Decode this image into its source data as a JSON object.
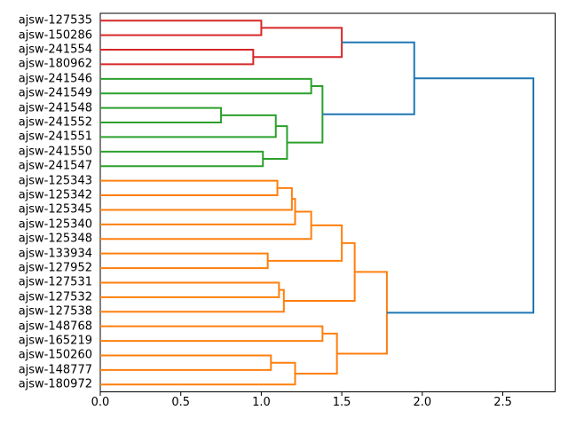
{
  "chart_data": {
    "type": "dendrogram",
    "title": "",
    "xlabel": "",
    "ylabel": "",
    "orientation": "labels-left-root-right",
    "xlim": [
      0,
      2.825
    ],
    "grid": false,
    "x_ticks": [
      {
        "value": 0.0,
        "label": "0.0"
      },
      {
        "value": 0.5,
        "label": "0.5"
      },
      {
        "value": 1.0,
        "label": "1.0"
      },
      {
        "value": 1.5,
        "label": "1.5"
      },
      {
        "value": 2.0,
        "label": "2.0"
      },
      {
        "value": 2.5,
        "label": "2.5"
      }
    ],
    "colors": {
      "blue": "#1f77b4",
      "orange": "#ff7f0e",
      "green": "#2ca02c",
      "red": "#d62728",
      "spine": "#000000",
      "text": "#000000",
      "background": "#ffffff"
    },
    "leaves": [
      "ajsw-127535",
      "ajsw-150286",
      "ajsw-241554",
      "ajsw-180962",
      "ajsw-241546",
      "ajsw-241549",
      "ajsw-241548",
      "ajsw-241552",
      "ajsw-241551",
      "ajsw-241550",
      "ajsw-241547",
      "ajsw-125343",
      "ajsw-125342",
      "ajsw-125345",
      "ajsw-125340",
      "ajsw-125348",
      "ajsw-133934",
      "ajsw-127952",
      "ajsw-127531",
      "ajsw-127532",
      "ajsw-127538",
      "ajsw-148768",
      "ajsw-165219",
      "ajsw-150260",
      "ajsw-148777",
      "ajsw-180972"
    ],
    "links": [
      {
        "id": "r1",
        "a": "L0",
        "b": "L1",
        "height": 1.0,
        "color": "red"
      },
      {
        "id": "r2",
        "a": "L2",
        "b": "L3",
        "height": 0.95,
        "color": "red"
      },
      {
        "id": "r3",
        "a": "r1",
        "b": "r2",
        "height": 1.5,
        "color": "red"
      },
      {
        "id": "g1",
        "a": "L4",
        "b": "L5",
        "height": 1.31,
        "color": "green"
      },
      {
        "id": "g2",
        "a": "L6",
        "b": "L7",
        "height": 0.75,
        "color": "green"
      },
      {
        "id": "g3",
        "a": "g2",
        "b": "L8",
        "height": 1.09,
        "color": "green"
      },
      {
        "id": "g4",
        "a": "L9",
        "b": "L10",
        "height": 1.01,
        "color": "green"
      },
      {
        "id": "g5",
        "a": "g3",
        "b": "g4",
        "height": 1.16,
        "color": "green"
      },
      {
        "id": "g6",
        "a": "g1",
        "b": "g5",
        "height": 1.38,
        "color": "green"
      },
      {
        "id": "o1",
        "a": "L11",
        "b": "L12",
        "height": 1.1,
        "color": "orange"
      },
      {
        "id": "o2",
        "a": "o1",
        "b": "L13",
        "height": 1.19,
        "color": "orange"
      },
      {
        "id": "o3",
        "a": "o2",
        "b": "L14",
        "height": 1.21,
        "color": "orange"
      },
      {
        "id": "o4",
        "a": "o3",
        "b": "L15",
        "height": 1.31,
        "color": "orange"
      },
      {
        "id": "o5",
        "a": "L16",
        "b": "L17",
        "height": 1.04,
        "color": "orange"
      },
      {
        "id": "o6",
        "a": "o4",
        "b": "o5",
        "height": 1.5,
        "color": "orange"
      },
      {
        "id": "o7",
        "a": "L18",
        "b": "L19",
        "height": 1.11,
        "color": "orange"
      },
      {
        "id": "o8",
        "a": "o7",
        "b": "L20",
        "height": 1.14,
        "color": "orange"
      },
      {
        "id": "o9",
        "a": "o6",
        "b": "o8",
        "height": 1.58,
        "color": "orange"
      },
      {
        "id": "o10",
        "a": "L21",
        "b": "L22",
        "height": 1.38,
        "color": "orange"
      },
      {
        "id": "o11",
        "a": "L23",
        "b": "L24",
        "height": 1.06,
        "color": "orange"
      },
      {
        "id": "o12",
        "a": "o11",
        "b": "L25",
        "height": 1.21,
        "color": "orange"
      },
      {
        "id": "o13",
        "a": "o10",
        "b": "o12",
        "height": 1.47,
        "color": "orange"
      },
      {
        "id": "o14",
        "a": "o9",
        "b": "o13",
        "height": 1.78,
        "color": "orange"
      },
      {
        "id": "b1",
        "a": "r3",
        "b": "g6",
        "height": 1.95,
        "color": "blue"
      },
      {
        "id": "b2",
        "a": "b1",
        "b": "o14",
        "height": 2.69,
        "color": "blue"
      }
    ]
  }
}
